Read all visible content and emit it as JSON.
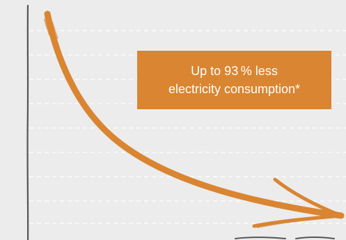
{
  "callout": {
    "line1": "Up to 93 % less",
    "line2": "electricity consumption*"
  },
  "colors": {
    "background": "#ececec",
    "accent": "#d98532",
    "gridline": "#ffffff",
    "axis": "#555555",
    "callout_text": "#ffffff"
  },
  "icons": {
    "curve": "downward-curved-arrow-icon"
  }
}
